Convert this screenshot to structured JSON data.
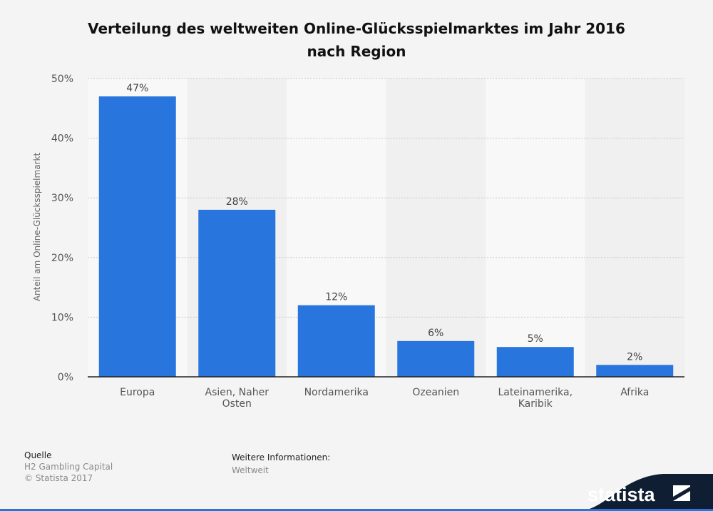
{
  "header": {
    "title_line1": "Verteilung des weltweiten Online-Glücksspielmarktes im Jahr 2016",
    "title_line2": "nach Region"
  },
  "footer": {
    "source_label": "Quelle",
    "source_name": "H2 Gambling Capital",
    "copyright": "© Statista 2017",
    "info_label": "Weitere Informationen:",
    "info_value": "Weltweit"
  },
  "brand": {
    "name": "statista"
  },
  "colors": {
    "bar": "#2876dd",
    "band_light": "#f8f8f8",
    "band_dark": "#f0f0f0",
    "background": "#f4f4f4"
  },
  "chart_data": {
    "type": "bar",
    "categories": [
      "Europa",
      "Asien, Naher Osten",
      "Nordamerika",
      "Ozeanien",
      "Lateinamerika, Karibik",
      "Afrika"
    ],
    "category_lines": [
      [
        "Europa"
      ],
      [
        "Asien, Naher",
        "Osten"
      ],
      [
        "Nordamerika"
      ],
      [
        "Ozeanien"
      ],
      [
        "Lateinamerika,",
        "Karibik"
      ],
      [
        "Afrika"
      ]
    ],
    "values": [
      47,
      28,
      12,
      6,
      5,
      2
    ],
    "data_labels": [
      "47%",
      "28%",
      "12%",
      "6%",
      "5%",
      "2%"
    ],
    "ylabel": "Anteil am Online-Glücksspielmarkt",
    "ylim": [
      0,
      50
    ],
    "yticks": [
      0,
      10,
      20,
      30,
      40,
      50
    ],
    "ytick_labels": [
      "0%",
      "10%",
      "20%",
      "30%",
      "40%",
      "50%"
    ],
    "grid": true
  }
}
